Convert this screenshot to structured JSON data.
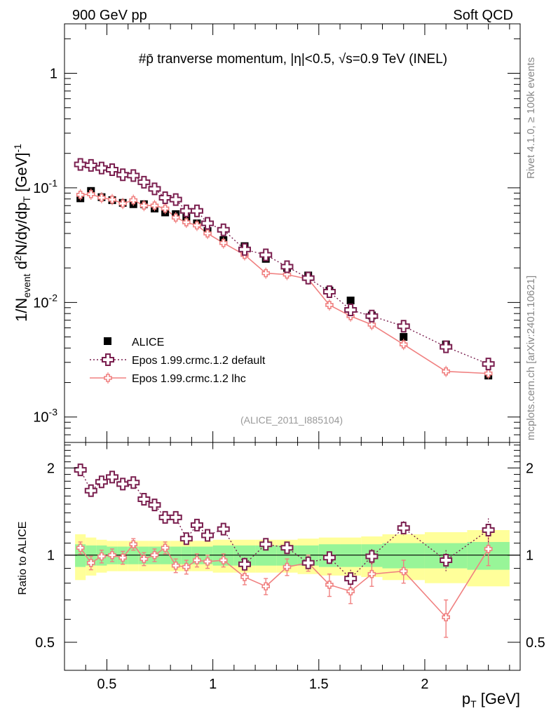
{
  "header": {
    "left": "900 GeV pp",
    "right": "Soft QCD"
  },
  "side_labels": {
    "rivet": "Rivet 4.1.0, ≥ 100k events",
    "mcplots": "mcplots.cern.ch [arXiv:2401.10621]"
  },
  "plot_title": "#p̄ tranverse momentum, |η|<0.5, √s=0.9 TeV (INEL)",
  "analysis_id": "(ALICE_2011_I885104)",
  "colors": {
    "alice": "#000000",
    "default": "#7a1f4f",
    "lhc": "#f08080",
    "band_inner": "#98f598",
    "band_outer": "#ffff9a"
  },
  "chart_data": [
    {
      "type": "scatter",
      "panel": "main",
      "title": "#p̄ tranverse momentum, |η|<0.5, √s=0.9 TeV (INEL)",
      "xlabel": "p_T [GeV]",
      "ylabel": "1/N_event d²N/dy/dp_T [GeV]^-1",
      "yscale": "log",
      "xlim": [
        0.3,
        2.45
      ],
      "ylim": [
        0.0006,
        2.7
      ],
      "ytick_labels": [
        "10^-3",
        "10^-2",
        "10^-1",
        "1"
      ],
      "x": [
        0.375,
        0.425,
        0.475,
        0.525,
        0.575,
        0.625,
        0.675,
        0.725,
        0.775,
        0.825,
        0.875,
        0.925,
        0.975,
        1.05,
        1.15,
        1.25,
        1.35,
        1.45,
        1.55,
        1.65,
        1.75,
        1.9,
        2.1,
        2.3
      ],
      "series": [
        {
          "name": "ALICE",
          "marker": "square",
          "values": [
            0.081,
            0.094,
            0.083,
            0.078,
            0.074,
            0.072,
            0.072,
            0.066,
            0.061,
            0.059,
            0.055,
            0.049,
            0.042,
            0.035,
            0.031,
            0.024,
            0.02,
            0.0172,
            0.0127,
            0.0104,
            0.0077,
            0.005,
            0.0043,
            0.0023
          ]
        },
        {
          "name": "Epos 1.99.crmc.1.2 default",
          "marker": "open-cross",
          "line": "dotted",
          "values": [
            0.16,
            0.157,
            0.149,
            0.144,
            0.13,
            0.128,
            0.112,
            0.098,
            0.082,
            0.079,
            0.063,
            0.063,
            0.049,
            0.043,
            0.029,
            0.026,
            0.0205,
            0.0163,
            0.0124,
            0.0086,
            0.0076,
            0.0062,
            0.0041,
            0.0029
          ]
        },
        {
          "name": "Epos 1.99.crmc.1.2 lhc",
          "marker": "small-cross",
          "line": "solid",
          "values": [
            0.087,
            0.088,
            0.082,
            0.079,
            0.073,
            0.078,
            0.07,
            0.07,
            0.066,
            0.055,
            0.05,
            0.047,
            0.04,
            0.033,
            0.026,
            0.018,
            0.0175,
            0.016,
            0.0095,
            0.0076,
            0.0064,
            0.0043,
            0.0025,
            0.0024
          ]
        }
      ],
      "legend": [
        "ALICE",
        "Epos 1.99.crmc.1.2 default",
        "Epos 1.99.crmc.1.2 lhc"
      ],
      "legend_position": "bottom-left"
    },
    {
      "type": "scatter",
      "panel": "ratio",
      "ylabel": "Ratio to ALICE",
      "xlabel": "p_T [GeV]",
      "yscale": "log",
      "xlim": [
        0.3,
        2.45
      ],
      "ylim": [
        0.4,
        2.45
      ],
      "xtick_labels": [
        "0.5",
        "1",
        "1.5",
        "2"
      ],
      "ytick_labels": [
        "0.5",
        "1",
        "2"
      ],
      "x": [
        0.375,
        0.425,
        0.475,
        0.525,
        0.575,
        0.625,
        0.675,
        0.725,
        0.775,
        0.825,
        0.875,
        0.925,
        0.975,
        1.05,
        1.15,
        1.25,
        1.35,
        1.45,
        1.55,
        1.65,
        1.75,
        1.9,
        2.1,
        2.3
      ],
      "bins": [
        [
          0.35,
          0.4
        ],
        [
          0.4,
          0.45
        ],
        [
          0.45,
          0.5
        ],
        [
          0.5,
          0.55
        ],
        [
          0.55,
          0.6
        ],
        [
          0.6,
          0.65
        ],
        [
          0.65,
          0.7
        ],
        [
          0.7,
          0.75
        ],
        [
          0.75,
          0.8
        ],
        [
          0.8,
          0.85
        ],
        [
          0.85,
          0.9
        ],
        [
          0.9,
          0.95
        ],
        [
          0.95,
          1.0
        ],
        [
          1.0,
          1.1
        ],
        [
          1.1,
          1.2
        ],
        [
          1.2,
          1.3
        ],
        [
          1.3,
          1.4
        ],
        [
          1.4,
          1.5
        ],
        [
          1.5,
          1.6
        ],
        [
          1.6,
          1.7
        ],
        [
          1.7,
          1.8
        ],
        [
          1.8,
          2.0
        ],
        [
          2.0,
          2.2
        ],
        [
          2.2,
          2.4
        ]
      ],
      "band_inner": [
        0.09,
        0.08,
        0.08,
        0.07,
        0.07,
        0.07,
        0.07,
        0.07,
        0.07,
        0.07,
        0.07,
        0.07,
        0.07,
        0.08,
        0.08,
        0.08,
        0.08,
        0.08,
        0.09,
        0.09,
        0.09,
        0.1,
        0.1,
        0.11
      ],
      "band_outer": [
        0.18,
        0.15,
        0.13,
        0.12,
        0.12,
        0.12,
        0.12,
        0.12,
        0.12,
        0.12,
        0.12,
        0.12,
        0.12,
        0.13,
        0.13,
        0.13,
        0.13,
        0.14,
        0.15,
        0.15,
        0.16,
        0.18,
        0.2,
        0.22
      ],
      "series": [
        {
          "name": "Epos 1.99.crmc.1.2 default",
          "values": [
            1.97,
            1.67,
            1.79,
            1.86,
            1.76,
            1.78,
            1.56,
            1.49,
            1.35,
            1.35,
            1.14,
            1.27,
            1.17,
            1.23,
            0.93,
            1.09,
            1.06,
            0.94,
            0.98,
            0.83,
            0.99,
            1.24,
            0.96,
            1.22
          ],
          "err": [
            0.04,
            0.04,
            0.04,
            0.04,
            0.04,
            0.04,
            0.04,
            0.04,
            0.05,
            0.05,
            0.05,
            0.05,
            0.05,
            0.05,
            0.05,
            0.05,
            0.05,
            0.05,
            0.05,
            0.06,
            0.06,
            0.07,
            0.08,
            0.12
          ]
        },
        {
          "name": "Epos 1.99.crmc.1.2 lhc",
          "values": [
            1.06,
            0.94,
            0.99,
            1.0,
            0.98,
            1.09,
            0.97,
            1.0,
            1.06,
            0.92,
            0.91,
            0.96,
            0.95,
            0.96,
            0.84,
            0.78,
            0.91,
            0.94,
            0.79,
            0.75,
            0.86,
            0.88,
            0.61,
            1.05
          ],
          "err": [
            0.05,
            0.05,
            0.05,
            0.05,
            0.05,
            0.05,
            0.05,
            0.05,
            0.05,
            0.05,
            0.05,
            0.05,
            0.05,
            0.05,
            0.05,
            0.05,
            0.06,
            0.06,
            0.07,
            0.07,
            0.08,
            0.08,
            0.09,
            0.13
          ]
        }
      ]
    }
  ]
}
